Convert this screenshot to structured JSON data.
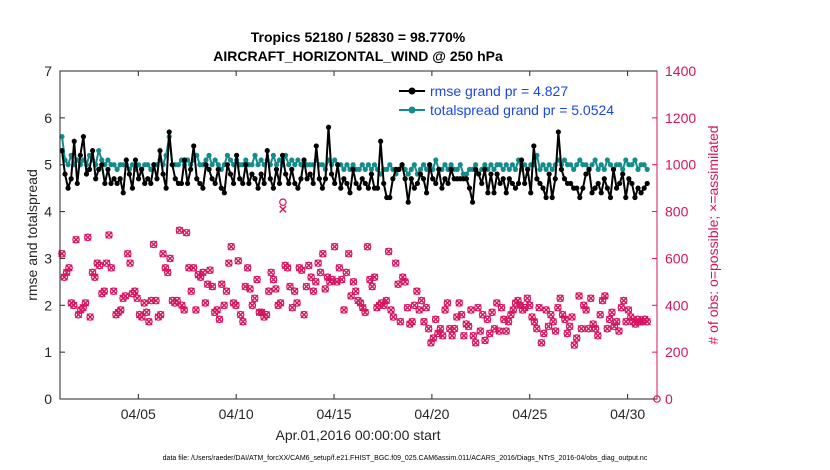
{
  "chart_data": {
    "type": "line",
    "title": [
      "Tropics 52180 / 52830 = 98.770%",
      "AIRCRAFT_HORIZONTAL_WIND @ 250 hPa"
    ],
    "xlabel": "Apr.01,2016 00:00:00 start",
    "ylabel": "rmse and totalspread",
    "y2label": "# of obs: o=possible; ×=assimilated",
    "footer": "data file: /Users/raeder/DAI/ATM_forcXX/CAM6_setup/f.e21.FHIST_BGC.f09_025.CAM6assim.011/ACARS_2016/Diags_NTrS_2016-04/obs_diag_output.nc",
    "xlim": [
      1,
      31.5
    ],
    "ylim": [
      0,
      7
    ],
    "y2lim": [
      0,
      1400
    ],
    "xticks": [
      5,
      10,
      15,
      20,
      25,
      30
    ],
    "xtick_labels": [
      "04/05",
      "04/10",
      "04/15",
      "04/20",
      "04/25",
      "04/30"
    ],
    "yticks": [
      0,
      1,
      2,
      3,
      4,
      5,
      6,
      7
    ],
    "y2ticks": [
      0,
      200,
      400,
      600,
      800,
      1000,
      1200,
      1400
    ],
    "series": [
      {
        "name": "rmse",
        "legend": "rmse grand pr = 4.827",
        "color": "#000000",
        "values": [
          5.3,
          4.8,
          4.5,
          4.7,
          5.5,
          4.6,
          5.2,
          5.6,
          4.8,
          4.9,
          5.3,
          4.7,
          4.9,
          5.0,
          4.6,
          4.9,
          4.6,
          4.7,
          4.6,
          4.7,
          4.4,
          5.1,
          4.8,
          4.5,
          5.1,
          4.7,
          4.9,
          4.6,
          4.7,
          4.6,
          5.0,
          4.7,
          5.3,
          4.8,
          4.5,
          5.7,
          5.0,
          4.7,
          4.6,
          4.6,
          5.1,
          4.6,
          4.9,
          5.4,
          4.7,
          4.6,
          4.5,
          5.0,
          4.9,
          4.7,
          4.6,
          4.9,
          4.5,
          4.4,
          5.0,
          4.8,
          4.6,
          5.2,
          4.7,
          4.6,
          5.0,
          4.6,
          4.8,
          4.7,
          4.5,
          4.8,
          4.6,
          5.3,
          4.7,
          4.5,
          4.9,
          4.6,
          5.2,
          4.8,
          4.6,
          4.9,
          4.6,
          4.5,
          4.7,
          5.1,
          4.7,
          4.8,
          4.6,
          5.4,
          4.7,
          4.5,
          4.7,
          5.8,
          4.8,
          4.6,
          5.0,
          4.5,
          4.7,
          4.6,
          4.4,
          4.9,
          4.6,
          4.5,
          4.7,
          4.6,
          4.5,
          4.8,
          4.5,
          4.5,
          5.5,
          4.6,
          4.3,
          4.3,
          4.7,
          4.9,
          4.9,
          5.0,
          4.7,
          4.2,
          4.7,
          4.5,
          4.6,
          4.8,
          4.7,
          4.4,
          5.0,
          4.7,
          4.6,
          4.9,
          4.5,
          4.7,
          4.6,
          4.9,
          4.7,
          4.7,
          4.7,
          4.7,
          4.7,
          4.5,
          4.2,
          4.9,
          4.8,
          4.6,
          4.9,
          4.4,
          4.8,
          4.4,
          4.8,
          4.6,
          4.7,
          4.4,
          4.7,
          4.6,
          4.5,
          4.6,
          5.1,
          4.6,
          4.9,
          4.4,
          5.4,
          4.7,
          4.6,
          4.5,
          4.3,
          4.8,
          4.3,
          4.7,
          5.7,
          4.9,
          4.7,
          4.6,
          4.6,
          4.5,
          4.5,
          4.3,
          4.5,
          4.8,
          4.9,
          4.4,
          4.5,
          4.6,
          4.4,
          4.7,
          4.5,
          4.3,
          4.9,
          4.5,
          4.6,
          4.8,
          4.3,
          4.7,
          4.6,
          4.3,
          4.5,
          4.4,
          4.5,
          4.6
        ]
      },
      {
        "name": "totalspread",
        "legend": "totalspread grand pr = 5.0524",
        "color": "#158c8c",
        "values": [
          5.6,
          5.1,
          5.0,
          5.2,
          5.0,
          5.1,
          5.0,
          5.1,
          5.0,
          5.2,
          5.1,
          5.0,
          5.3,
          5.1,
          5.0,
          5.1,
          5.0,
          5.0,
          4.9,
          5.0,
          5.0,
          5.0,
          4.9,
          5.0,
          4.9,
          5.0,
          4.9,
          5.0,
          5.0,
          4.9,
          5.0,
          5.0,
          5.1,
          5.0,
          5.2,
          5.6,
          5.0,
          5.0,
          5.0,
          5.1,
          5.0,
          5.1,
          5.0,
          5.1,
          5.2,
          5.0,
          5.0,
          5.1,
          5.2,
          5.0,
          5.1,
          5.0,
          4.9,
          5.0,
          5.2,
          5.1,
          5.0,
          5.1,
          5.0,
          5.0,
          5.1,
          5.0,
          5.0,
          5.2,
          5.0,
          5.1,
          5.0,
          5.1,
          5.0,
          5.2,
          5.0,
          5.1,
          5.0,
          5.2,
          5.0,
          5.1,
          5.0,
          5.1,
          5.0,
          5.1,
          5.0,
          5.0,
          5.0,
          5.1,
          5.0,
          5.0,
          4.9,
          5.1,
          5.0,
          5.1,
          5.0,
          5.0,
          4.9,
          5.0,
          4.9,
          5.0,
          4.9,
          4.9,
          5.0,
          4.9,
          5.0,
          4.9,
          5.0,
          4.9,
          4.8,
          4.9,
          4.9,
          5.0,
          4.9,
          4.8,
          4.9,
          5.0,
          4.9,
          4.8,
          4.9,
          5.0,
          4.8,
          4.9,
          5.0,
          4.9,
          5.0,
          4.9,
          5.1,
          4.9,
          4.9,
          5.0,
          4.9,
          5.0,
          4.9,
          4.9,
          5.0,
          4.8,
          4.8,
          4.9,
          4.9,
          5.0,
          4.8,
          4.9,
          5.0,
          4.9,
          5.0,
          4.9,
          5.0,
          5.0,
          4.9,
          5.0,
          4.9,
          5.0,
          4.9,
          5.1,
          4.9,
          5.0,
          4.9,
          5.0,
          5.0,
          5.2,
          4.9,
          5.0,
          4.9,
          5.0,
          4.9,
          5.0,
          5.1,
          5.0,
          5.1,
          5.0,
          5.0,
          4.9,
          5.0,
          5.1,
          5.0,
          5.0,
          4.9,
          5.0,
          5.1,
          4.9,
          5.0,
          4.9,
          5.1,
          5.0,
          4.9,
          5.0,
          5.0,
          4.9,
          5.1,
          5.0,
          5.0,
          5.1,
          4.9,
          5.0,
          5.0,
          4.9
        ]
      },
      {
        "name": "obs_possible",
        "axis": "right",
        "marker": "o",
        "color": "#d6135f",
        "values": [
          620,
          520,
          540,
          560,
          410,
          400,
          680,
          360,
          380,
          390,
          410,
          690,
          350,
          540,
          520,
          580,
          570,
          450,
          460,
          580,
          700,
          560,
          460,
          360,
          370,
          380,
          430,
          440,
          620,
          580,
          450,
          460,
          430,
          360,
          350,
          410,
          370,
          330,
          420,
          660,
          420,
          350,
          360,
          620,
          560,
          540,
          600,
          420,
          410,
          420,
          720,
          400,
          380,
          710,
          560,
          460,
          560,
          380,
          530,
          520,
          540,
          410,
          490,
          550,
          480,
          370,
          380,
          340,
          490,
          400,
          460,
          580,
          650,
          410,
          400,
          590,
          360,
          330,
          480,
          560,
          470,
          400,
          430,
          510,
          370,
          370,
          350,
          360,
          460,
          540,
          510,
          470,
          400,
          410,
          840,
          570,
          560,
          480,
          390,
          460,
          410,
          560,
          550,
          360,
          480,
          570,
          520,
          460,
          500,
          580,
          540,
          620,
          470,
          520,
          500,
          510,
          650,
          500,
          560,
          510,
          380,
          540,
          620,
          440,
          500,
          460,
          420,
          410,
          390,
          370,
          650,
          510,
          480,
          520,
          390,
          400,
          410,
          400,
          420,
          630,
          380,
          350,
          580,
          490,
          330,
          520,
          500,
          390,
          320,
          330,
          400,
          460,
          380,
          420,
          330,
          390,
          300,
          240,
          260,
          340,
          280,
          300,
          270,
          380,
          410,
          300,
          270,
          300,
          350,
          410,
          360,
          270,
          320,
          310,
          380,
          270,
          240,
          390,
          290,
          360,
          250,
          340,
          280,
          370,
          300,
          410,
          290,
          390,
          340,
          290,
          330,
          360,
          380,
          410,
          420,
          400,
          380,
          390,
          430,
          400,
          350,
          330,
          300,
          390,
          240,
          280,
          380,
          310,
          360,
          330,
          290,
          390,
          430,
          360,
          340,
          280,
          310,
          350,
          230,
          260,
          440,
          300,
          400,
          380,
          300,
          430,
          320,
          300,
          270,
          360,
          420,
          440,
          300,
          340,
          370,
          310,
          330,
          290,
          390,
          420,
          330,
          380,
          350,
          330,
          320,
          340,
          330,
          330,
          340,
          330
        ]
      },
      {
        "name": "obs_assimilated",
        "axis": "right",
        "marker": "x",
        "color": "#d6135f",
        "values": [
          620,
          520,
          540,
          560,
          410,
          400,
          680,
          360,
          380,
          390,
          410,
          690,
          350,
          540,
          520,
          580,
          570,
          450,
          460,
          580,
          700,
          560,
          460,
          360,
          370,
          380,
          430,
          440,
          620,
          580,
          450,
          460,
          430,
          360,
          350,
          410,
          370,
          330,
          420,
          660,
          420,
          350,
          360,
          620,
          560,
          540,
          600,
          420,
          410,
          420,
          720,
          400,
          380,
          710,
          560,
          460,
          560,
          380,
          530,
          520,
          540,
          410,
          490,
          550,
          480,
          370,
          380,
          340,
          490,
          400,
          460,
          580,
          650,
          410,
          400,
          590,
          360,
          330,
          480,
          560,
          470,
          400,
          430,
          510,
          370,
          370,
          350,
          360,
          460,
          540,
          510,
          470,
          400,
          410,
          810,
          570,
          560,
          480,
          390,
          460,
          410,
          560,
          550,
          360,
          480,
          570,
          520,
          460,
          500,
          580,
          540,
          620,
          470,
          520,
          500,
          510,
          650,
          500,
          560,
          510,
          380,
          540,
          620,
          440,
          500,
          460,
          420,
          410,
          390,
          370,
          650,
          510,
          480,
          520,
          390,
          400,
          410,
          400,
          420,
          630,
          380,
          350,
          580,
          490,
          330,
          520,
          500,
          390,
          320,
          330,
          400,
          460,
          380,
          420,
          330,
          390,
          300,
          240,
          260,
          340,
          280,
          300,
          270,
          380,
          410,
          300,
          270,
          300,
          350,
          410,
          360,
          270,
          320,
          310,
          380,
          270,
          240,
          390,
          290,
          360,
          250,
          340,
          280,
          370,
          300,
          410,
          290,
          390,
          340,
          290,
          330,
          360,
          380,
          410,
          420,
          400,
          380,
          390,
          430,
          400,
          350,
          330,
          300,
          390,
          240,
          280,
          380,
          310,
          360,
          330,
          290,
          390,
          430,
          360,
          340,
          280,
          310,
          350,
          230,
          260,
          440,
          300,
          400,
          380,
          300,
          430,
          320,
          300,
          270,
          360,
          420,
          440,
          300,
          340,
          370,
          310,
          330,
          290,
          390,
          420,
          330,
          380,
          350,
          330,
          320,
          340,
          330,
          330,
          340,
          330
        ]
      },
      {
        "name": "obs_zero_end",
        "axis": "right",
        "marker": "o",
        "color": "#d6135f",
        "x": [
          31.5
        ],
        "values": [
          0
        ]
      }
    ]
  }
}
